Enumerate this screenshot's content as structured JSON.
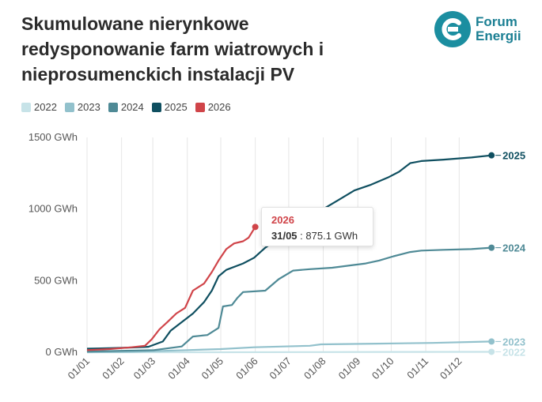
{
  "title": "Skumulowane nierynkowe redysponowanie farm wiatrowych i nieprosumenckich instalacji PV",
  "logo": {
    "line1": "Forum",
    "line2": "Energii",
    "icon": "forum-energii-logo-icon"
  },
  "colors": {
    "2022": "#c7e3e8",
    "2023": "#92c1cc",
    "2024": "#4f8a96",
    "2025": "#0f4f60",
    "2026": "#d04449",
    "grid": "#e6e6e6",
    "axis_text": "#555555"
  },
  "tooltip": {
    "series": "2026",
    "date": "31/05",
    "sep": " : ",
    "value": "875.1 GWh"
  },
  "chart_data": {
    "type": "line",
    "ylabel": "",
    "xlabel": "",
    "ylim": [
      0,
      1500
    ],
    "yticks": [
      0,
      500,
      1000,
      1500
    ],
    "ytick_labels": [
      "0 GWh",
      "500 GWh",
      "1000 GWh",
      "1500 GWh"
    ],
    "xlim": [
      0,
      365
    ],
    "xtick_labels": [
      "01/01",
      "01/02",
      "01/03",
      "01/04",
      "01/05",
      "01/06",
      "01/07",
      "01/08",
      "01/09",
      "01/10",
      "01/11",
      "01/12"
    ],
    "grid": "vertical",
    "legend": "top-left",
    "series": [
      {
        "name": "2022",
        "end_label": "2022",
        "points": [
          [
            0,
            0
          ],
          [
            120,
            0
          ],
          [
            200,
            1
          ],
          [
            280,
            2
          ],
          [
            363,
            3
          ]
        ]
      },
      {
        "name": "2023",
        "end_label": "2023",
        "points": [
          [
            0,
            0
          ],
          [
            40,
            3
          ],
          [
            90,
            15
          ],
          [
            120,
            22
          ],
          [
            150,
            35
          ],
          [
            200,
            45
          ],
          [
            210,
            55
          ],
          [
            260,
            60
          ],
          [
            310,
            65
          ],
          [
            363,
            75
          ]
        ]
      },
      {
        "name": "2024",
        "end_label": "2024",
        "points": [
          [
            0,
            5
          ],
          [
            31,
            10
          ],
          [
            60,
            15
          ],
          [
            85,
            40
          ],
          [
            95,
            110
          ],
          [
            108,
            120
          ],
          [
            118,
            170
          ],
          [
            122,
            320
          ],
          [
            130,
            330
          ],
          [
            135,
            380
          ],
          [
            140,
            420
          ],
          [
            160,
            430
          ],
          [
            172,
            510
          ],
          [
            185,
            570
          ],
          [
            200,
            580
          ],
          [
            220,
            590
          ],
          [
            240,
            610
          ],
          [
            250,
            620
          ],
          [
            262,
            640
          ],
          [
            275,
            670
          ],
          [
            290,
            700
          ],
          [
            300,
            710
          ],
          [
            320,
            715
          ],
          [
            345,
            720
          ],
          [
            363,
            730
          ]
        ]
      },
      {
        "name": "2025",
        "end_label": "2025",
        "points": [
          [
            0,
            25
          ],
          [
            20,
            28
          ],
          [
            40,
            33
          ],
          [
            55,
            38
          ],
          [
            68,
            75
          ],
          [
            75,
            150
          ],
          [
            85,
            210
          ],
          [
            95,
            270
          ],
          [
            105,
            350
          ],
          [
            112,
            430
          ],
          [
            118,
            530
          ],
          [
            125,
            575
          ],
          [
            140,
            620
          ],
          [
            150,
            660
          ],
          [
            160,
            730
          ],
          [
            175,
            810
          ],
          [
            185,
            880
          ],
          [
            200,
            930
          ],
          [
            212,
            1000
          ],
          [
            225,
            1060
          ],
          [
            240,
            1130
          ],
          [
            255,
            1170
          ],
          [
            270,
            1220
          ],
          [
            280,
            1260
          ],
          [
            290,
            1320
          ],
          [
            300,
            1335
          ],
          [
            320,
            1345
          ],
          [
            345,
            1360
          ],
          [
            363,
            1375
          ]
        ]
      },
      {
        "name": "2026",
        "end_label": "",
        "points": [
          [
            0,
            15
          ],
          [
            20,
            22
          ],
          [
            40,
            35
          ],
          [
            52,
            45
          ],
          [
            58,
            90
          ],
          [
            65,
            160
          ],
          [
            72,
            210
          ],
          [
            80,
            270
          ],
          [
            88,
            310
          ],
          [
            95,
            430
          ],
          [
            105,
            480
          ],
          [
            112,
            560
          ],
          [
            118,
            640
          ],
          [
            125,
            720
          ],
          [
            132,
            760
          ],
          [
            140,
            775
          ],
          [
            145,
            800
          ],
          [
            151,
            875.1
          ]
        ]
      }
    ]
  }
}
